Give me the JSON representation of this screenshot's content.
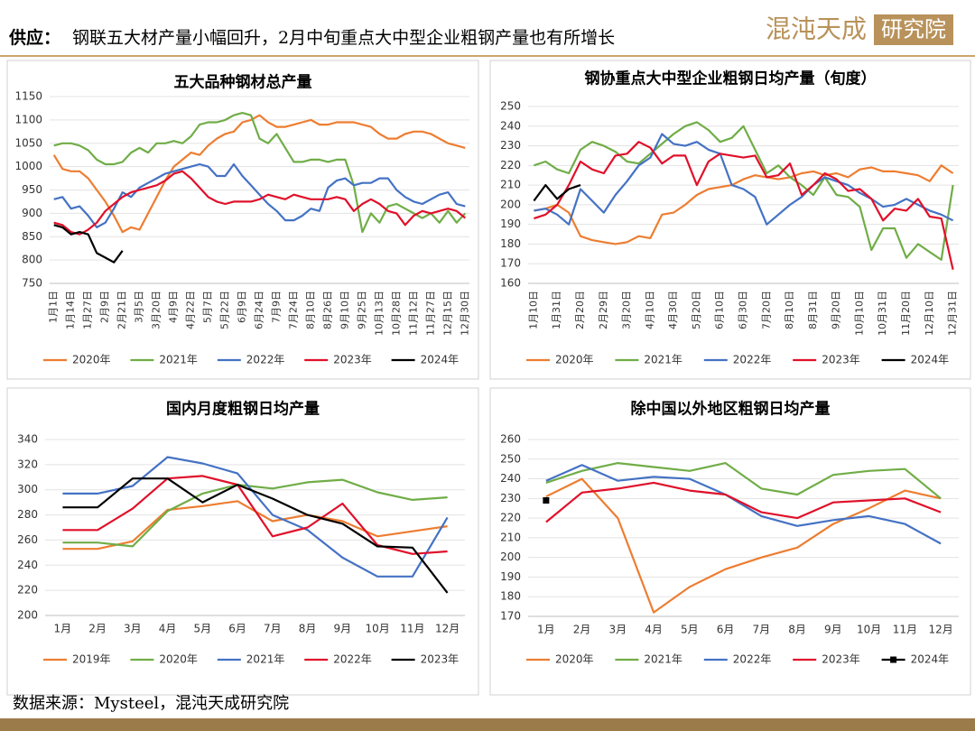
{
  "header": {
    "lead": "供应：",
    "title": "钢联五大材产量小幅回升，2月中旬重点大中型企业粗钢产量也有所增长",
    "logo": "混沌天成",
    "logo_sub": "研究院"
  },
  "footer": "数据来源：Mysteel，混沌天成研究院",
  "chart_data": [
    {
      "type": "line",
      "title": "五大品种钢材总产量",
      "categories": [
        "1月1日",
        null,
        "1月14日",
        null,
        "1月27日",
        null,
        "2月9日",
        null,
        "2月21日",
        null,
        "3月5日",
        null,
        "3月20日",
        null,
        "4月9日",
        null,
        "4月22日",
        null,
        "5月7日",
        null,
        "5月22日",
        null,
        "6月9日",
        null,
        "6月24日",
        null,
        "7月9日",
        null,
        "7月24日",
        null,
        "8月10日",
        null,
        "8月26日",
        null,
        "9月10日",
        null,
        "9月25日",
        null,
        "10月13日",
        null,
        "10月28日",
        null,
        "11月12日",
        null,
        "11月27日",
        null,
        "12月15日",
        null,
        "12月30日"
      ],
      "series": [
        {
          "name": "2020年",
          "color": "#ED7D31",
          "values": [
            1025,
            995,
            990,
            990,
            975,
            950,
            925,
            895,
            860,
            870,
            865,
            900,
            935,
            970,
            1000,
            1015,
            1030,
            1025,
            1045,
            1060,
            1070,
            1075,
            1095,
            1100,
            1110,
            1095,
            1085,
            1085,
            1090,
            1095,
            1100,
            1090,
            1090,
            1095,
            1095,
            1095,
            1090,
            1085,
            1070,
            1060,
            1060,
            1070,
            1075,
            1075,
            1070,
            1060,
            1050,
            1045,
            1040
          ]
        },
        {
          "name": "2021年",
          "color": "#70AD47",
          "values": [
            1045,
            1050,
            1050,
            1045,
            1035,
            1015,
            1005,
            1005,
            1010,
            1030,
            1040,
            1030,
            1050,
            1050,
            1055,
            1050,
            1065,
            1090,
            1095,
            1095,
            1100,
            1110,
            1115,
            1110,
            1060,
            1050,
            1070,
            1040,
            1010,
            1010,
            1015,
            1015,
            1010,
            1015,
            1015,
            960,
            860,
            900,
            880,
            915,
            920,
            910,
            900,
            890,
            900,
            880,
            905,
            880,
            900
          ]
        },
        {
          "name": "2022年",
          "color": "#4472C4",
          "values": [
            930,
            935,
            910,
            915,
            895,
            870,
            880,
            910,
            945,
            935,
            955,
            965,
            975,
            985,
            990,
            995,
            1000,
            1005,
            1000,
            980,
            980,
            1005,
            980,
            960,
            940,
            920,
            905,
            885,
            885,
            895,
            910,
            905,
            955,
            970,
            975,
            960,
            965,
            965,
            975,
            975,
            950,
            935,
            925,
            920,
            930,
            940,
            945,
            920,
            915
          ]
        },
        {
          "name": "2023年",
          "color": "#E0102A",
          "values": [
            880,
            875,
            860,
            855,
            865,
            880,
            905,
            920,
            935,
            945,
            950,
            955,
            960,
            970,
            985,
            990,
            975,
            955,
            935,
            925,
            920,
            925,
            925,
            925,
            930,
            940,
            935,
            930,
            940,
            935,
            930,
            930,
            930,
            935,
            930,
            905,
            920,
            930,
            920,
            905,
            900,
            875,
            895,
            905,
            900,
            905,
            910,
            905,
            890
          ]
        },
        {
          "name": "2024年",
          "color": "#000000",
          "values": [
            875,
            870,
            855,
            860,
            855,
            815,
            805,
            795,
            820,
            null,
            null,
            null,
            null,
            null,
            null,
            null,
            null,
            null,
            null,
            null,
            null,
            null,
            null,
            null,
            null,
            null,
            null,
            null,
            null,
            null,
            null,
            null,
            null,
            null,
            null,
            null,
            null,
            null,
            null,
            null,
            null,
            null,
            null,
            null,
            null,
            null,
            null,
            null,
            null
          ]
        }
      ],
      "ylim": [
        750,
        1150
      ],
      "yticks": [
        750,
        800,
        850,
        900,
        950,
        1000,
        1050,
        1100,
        1150
      ],
      "grid": true,
      "legend": "bottom"
    },
    {
      "type": "line",
      "title": "钢协重点大中型企业粗钢日均产量（旬度）",
      "categories": [
        "1月10日",
        null,
        "1月31日",
        null,
        "2月20日",
        null,
        "2月29日",
        null,
        "3月20日",
        null,
        "4月10日",
        null,
        "4月30日",
        null,
        "5月20日",
        null,
        "6月10日",
        null,
        "6月30日",
        null,
        "7月20日",
        null,
        "8月10日",
        null,
        "8月31日",
        null,
        "9月20日",
        null,
        "10月10日",
        null,
        "10月31日",
        null,
        "11月20日",
        null,
        "12月10日",
        null,
        "12月31日"
      ],
      "series": [
        {
          "name": "2020年",
          "color": "#ED7D31",
          "values": [
            197,
            198,
            200,
            196,
            184,
            182,
            181,
            180,
            181,
            184,
            183,
            195,
            196,
            200,
            205,
            208,
            209,
            210,
            213,
            215,
            214,
            213,
            214,
            216,
            217,
            215,
            216,
            214,
            218,
            219,
            217,
            217,
            216,
            215,
            212,
            220,
            216
          ]
        },
        {
          "name": "2021年",
          "color": "#70AD47",
          "values": [
            220,
            222,
            218,
            216,
            228,
            232,
            230,
            227,
            222,
            221,
            226,
            231,
            236,
            240,
            242,
            238,
            232,
            234,
            240,
            228,
            216,
            220,
            214,
            210,
            205,
            214,
            205,
            204,
            199,
            177,
            188,
            188,
            173,
            180,
            176,
            172,
            210
          ]
        },
        {
          "name": "2022年",
          "color": "#4472C4",
          "values": [
            197,
            198,
            195,
            190,
            208,
            202,
            196,
            205,
            212,
            220,
            224,
            236,
            231,
            230,
            232,
            228,
            226,
            210,
            208,
            204,
            190,
            195,
            200,
            204,
            210,
            214,
            212,
            210,
            206,
            203,
            199,
            200,
            203,
            200,
            197,
            195,
            192
          ]
        },
        {
          "name": "2023年",
          "color": "#E0102A",
          "values": [
            193,
            195,
            200,
            210,
            222,
            218,
            216,
            225,
            226,
            232,
            229,
            221,
            225,
            225,
            210,
            222,
            226,
            225,
            224,
            225,
            214,
            215,
            221,
            205,
            210,
            216,
            213,
            207,
            208,
            203,
            192,
            198,
            197,
            203,
            194,
            193,
            167
          ]
        },
        {
          "name": "2024年",
          "color": "#000000",
          "values": [
            202,
            210,
            203,
            208,
            210,
            null,
            null,
            null,
            null,
            null,
            null,
            null,
            null,
            null,
            null,
            null,
            null,
            null,
            null,
            null,
            null,
            null,
            null,
            null,
            null,
            null,
            null,
            null,
            null,
            null,
            null,
            null,
            null,
            null,
            null,
            null,
            null
          ]
        }
      ],
      "ylim": [
        160,
        250
      ],
      "yticks": [
        160,
        170,
        180,
        190,
        200,
        210,
        220,
        230,
        240,
        250
      ],
      "grid": true,
      "legend": "bottom"
    },
    {
      "type": "line",
      "title": "国内月度粗钢日均产量",
      "categories": [
        "1月",
        "2月",
        "3月",
        "4月",
        "5月",
        "6月",
        "7月",
        "8月",
        "9月",
        "10月",
        "11月",
        "12月"
      ],
      "series": [
        {
          "name": "2019年",
          "color": "#ED7D31",
          "values": [
            253,
            253,
            259,
            284,
            287,
            291,
            275,
            280,
            275,
            263,
            267,
            271
          ]
        },
        {
          "name": "2020年",
          "color": "#70AD47",
          "values": [
            258,
            258,
            255,
            283,
            297,
            304,
            301,
            306,
            308,
            298,
            292,
            294
          ]
        },
        {
          "name": "2021年",
          "color": "#4472C4",
          "values": [
            297,
            297,
            303,
            326,
            321,
            313,
            280,
            268,
            246,
            231,
            231,
            278
          ]
        },
        {
          "name": "2022年",
          "color": "#E0102A",
          "values": [
            268,
            268,
            285,
            309,
            311,
            304,
            263,
            270,
            289,
            256,
            249,
            251
          ]
        },
        {
          "name": "2023年",
          "color": "#000000",
          "values": [
            286,
            286,
            309,
            309,
            290,
            304,
            293,
            280,
            273,
            255,
            254,
            218
          ]
        }
      ],
      "ylim": [
        200,
        340
      ],
      "yticks": [
        200,
        220,
        240,
        260,
        280,
        300,
        320,
        340
      ],
      "grid": true,
      "legend": "bottom"
    },
    {
      "type": "line",
      "title": "除中国以外地区粗钢日均产量",
      "categories": [
        "1月",
        "2月",
        "3月",
        "4月",
        "5月",
        "6月",
        "7月",
        "8月",
        "9月",
        "10月",
        "11月",
        "12月"
      ],
      "series": [
        {
          "name": "2020年",
          "color": "#ED7D31",
          "values": [
            231,
            240,
            220,
            172,
            185,
            194,
            200,
            205,
            217,
            225,
            234,
            230
          ]
        },
        {
          "name": "2021年",
          "color": "#70AD47",
          "values": [
            238,
            244,
            248,
            246,
            244,
            248,
            235,
            232,
            242,
            244,
            245,
            230
          ]
        },
        {
          "name": "2022年",
          "color": "#4472C4",
          "values": [
            239,
            247,
            239,
            241,
            240,
            232,
            221,
            216,
            219,
            221,
            217,
            207
          ]
        },
        {
          "name": "2023年",
          "color": "#E0102A",
          "values": [
            218,
            233,
            235,
            238,
            234,
            232,
            223,
            220,
            228,
            229,
            230,
            223
          ]
        },
        {
          "name": "2024年",
          "color": "#000000",
          "marker": "square",
          "values": [
            229,
            null,
            null,
            null,
            null,
            null,
            null,
            null,
            null,
            null,
            null,
            null
          ]
        }
      ],
      "ylim": [
        170,
        260
      ],
      "yticks": [
        170,
        180,
        190,
        200,
        210,
        220,
        230,
        240,
        250,
        260
      ],
      "grid": true,
      "legend": "bottom"
    }
  ]
}
